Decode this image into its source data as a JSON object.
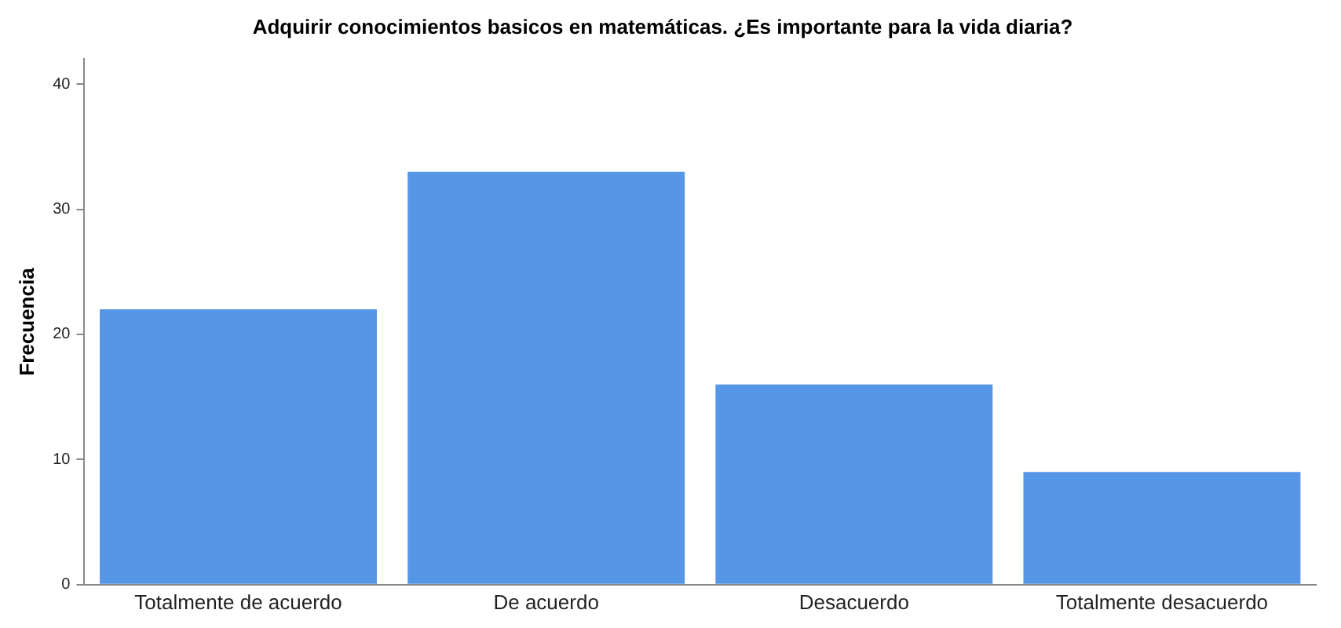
{
  "chart_data": {
    "type": "bar",
    "title": "Adquirir conocimientos basicos en matemáticas. ¿Es importante para la vida diaria?",
    "ylabel": "Frecuencia",
    "categories": [
      "Totalmente de acuerdo",
      "De acuerdo",
      "Desacuerdo",
      "Totalmente desacuerdo"
    ],
    "values": [
      22,
      33,
      16,
      9
    ],
    "color": "#5596e6",
    "ylim": [
      0,
      42
    ],
    "yticks": [
      0,
      10,
      20,
      30,
      40
    ],
    "grid": false,
    "legend": false
  }
}
